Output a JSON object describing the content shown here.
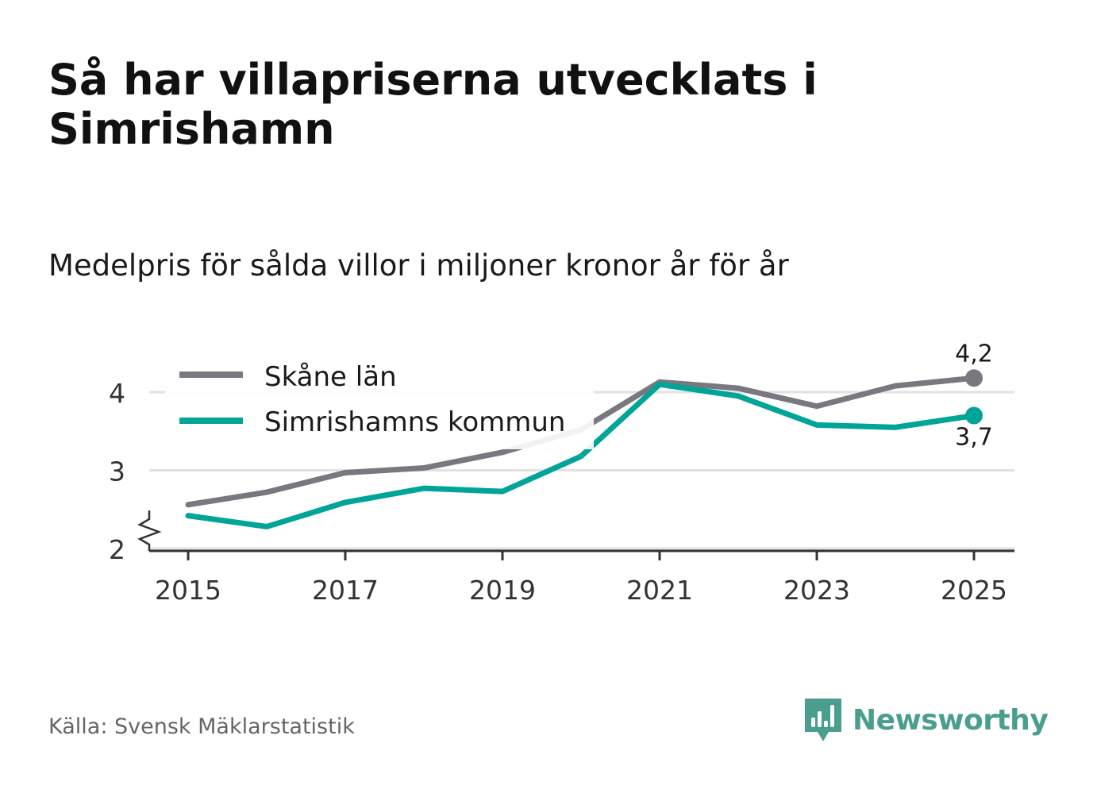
{
  "title": "Så har villapriserna utvecklats i Simrishamn",
  "subtitle": "Medelpris för sålda villor i miljoner kronor år för år",
  "source": "Källa: Svensk Mäklarstatistik",
  "brand": {
    "name": "Newsworthy",
    "icon": "newsworthy-logo-icon",
    "color": "#4a9e8e"
  },
  "chart_data": {
    "type": "line",
    "title": "Så har villapriserna utvecklats i Simrishamn",
    "subtitle": "Medelpris för sålda villor i miljoner kronor år för år",
    "xlabel": "",
    "ylabel": "",
    "x": [
      2015,
      2016,
      2017,
      2018,
      2019,
      2020,
      2021,
      2022,
      2023,
      2024,
      2025
    ],
    "x_ticks": [
      "2015",
      "2017",
      "2019",
      "2021",
      "2023",
      "2025"
    ],
    "y_ticks": [
      "2",
      "3",
      "4"
    ],
    "xlim": [
      2014.5,
      2025.5
    ],
    "ylim": [
      1.95,
      4.6
    ],
    "axis_break": true,
    "grid": true,
    "legend_position": "top-left",
    "series": [
      {
        "name": "Skåne län",
        "color": "#7a787f",
        "values": [
          2.56,
          2.72,
          2.97,
          3.03,
          3.23,
          3.52,
          4.13,
          4.05,
          3.82,
          4.08,
          4.18
        ],
        "end_label": "4,2"
      },
      {
        "name": "Simrishamns kommun",
        "color": "#00a597",
        "values": [
          2.42,
          2.28,
          2.59,
          2.77,
          2.73,
          3.18,
          4.1,
          3.95,
          3.58,
          3.55,
          3.7
        ],
        "end_label": "3,7"
      }
    ]
  }
}
